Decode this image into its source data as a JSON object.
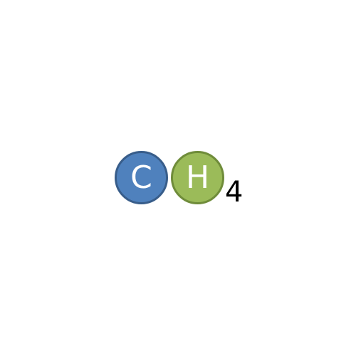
{
  "formula": {
    "carbon": {
      "symbol": "C",
      "fill_color": "#4f81bd"
    },
    "hydrogen": {
      "symbol": "H",
      "fill_color": "#9bbb59",
      "subscript": "4"
    }
  }
}
